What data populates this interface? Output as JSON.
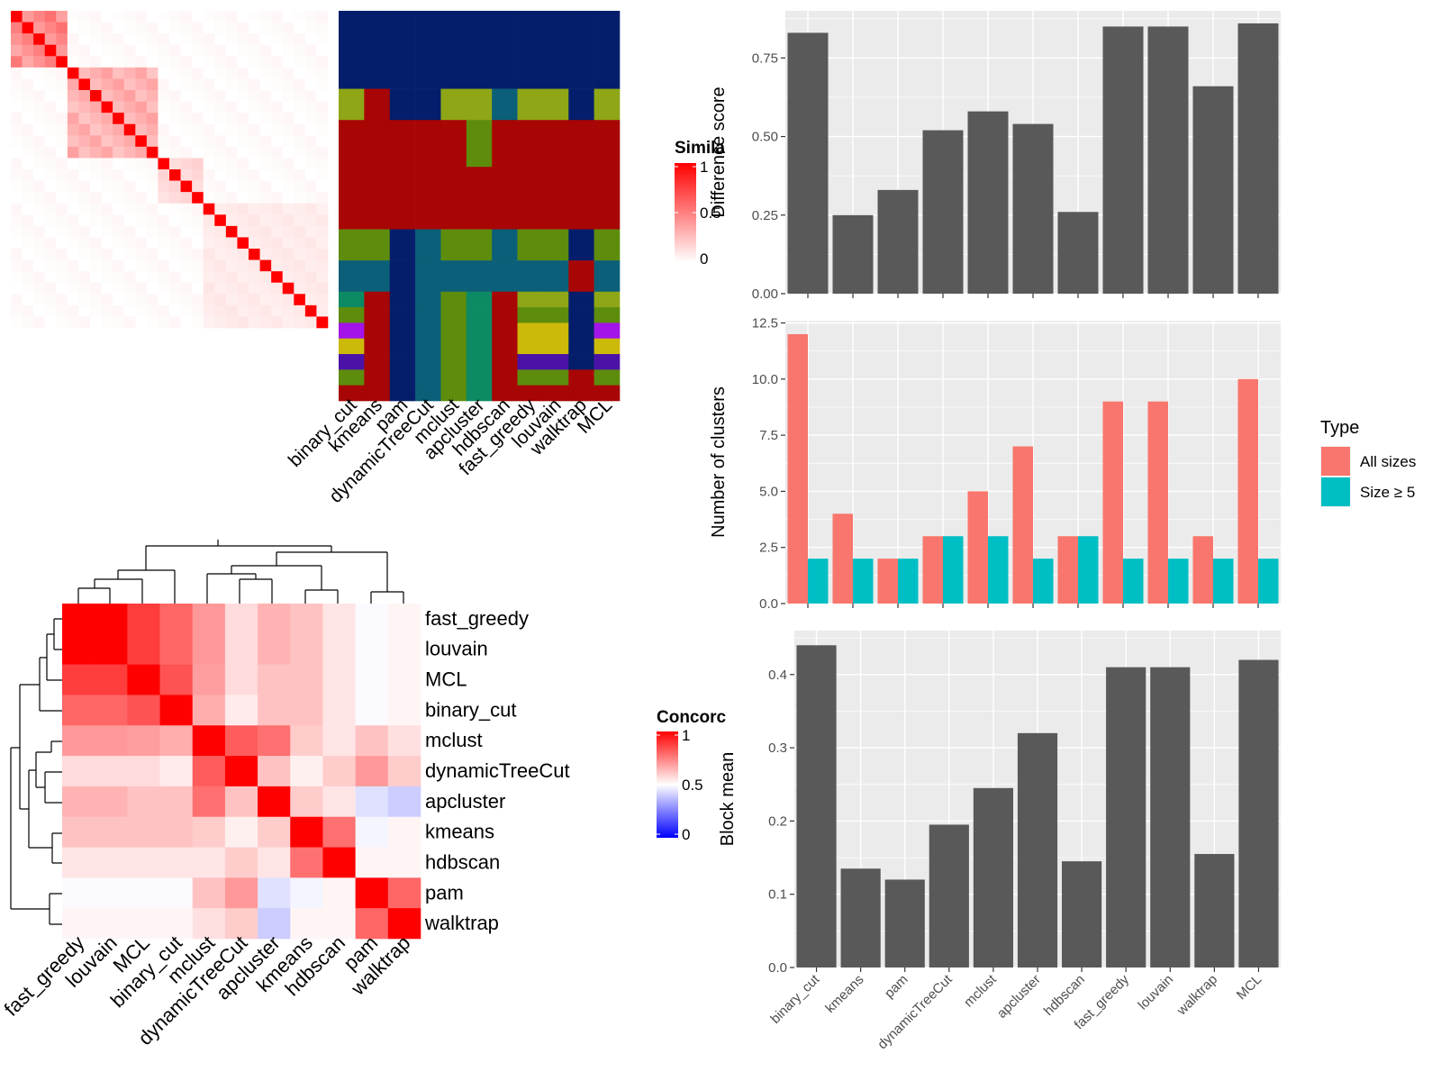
{
  "colors": {
    "panel_bg": "#ebebeb",
    "bar_dark": "#595959",
    "all_sizes": "#f8766d",
    "size_ge5": "#00bfc4",
    "heat_red": "#ff0000",
    "heat_blue": "#0000ff",
    "memb_navy": "#041e6b",
    "memb_red": "#a80505",
    "memb_olive": "#8fa616",
    "memb_green": "#5e8c0d",
    "memb_teal": "#0b5f78",
    "memb_seagreen": "#0c8a63",
    "memb_purple": "#a314e8",
    "memb_gold": "#ccb90a",
    "memb_indigo": "#4b12a8"
  },
  "chart_data": [
    {
      "id": "similarity_heatmap",
      "type": "heatmap",
      "legend_title": "Simila",
      "legend_ticks": [
        "1",
        "0.5",
        "0"
      ],
      "n": 28,
      "diagonal": 1,
      "blocks": [
        {
          "rows": [
            0,
            1,
            2,
            3,
            4
          ],
          "value": 0.45
        },
        {
          "rows": [
            5,
            6,
            7,
            8,
            9,
            10,
            11,
            12
          ],
          "value": 0.3
        },
        {
          "rows": [
            13,
            14,
            15,
            16
          ],
          "value": 0.15
        },
        {
          "rows": [
            17,
            18,
            19,
            20,
            21,
            22,
            23,
            24,
            25,
            26,
            27
          ],
          "value": 0.08
        }
      ]
    },
    {
      "id": "membership_heatmap",
      "type": "heatmap",
      "columns": [
        "binary_cut",
        "kmeans",
        "pam",
        "dynamicTreeCut",
        "mclust",
        "apcluster",
        "hdbscan",
        "fast_greedy",
        "louvain",
        "walktrap",
        "MCL"
      ],
      "row_groups": [
        {
          "rows": 5,
          "cols": [
            "navy",
            "navy",
            "navy",
            "navy",
            "navy",
            "navy",
            "navy",
            "navy",
            "navy",
            "navy",
            "navy"
          ]
        },
        {
          "rows": 2,
          "cols": [
            "olive",
            "red",
            "navy",
            "navy",
            "olive",
            "olive",
            "teal",
            "olive",
            "olive",
            "navy",
            "olive"
          ]
        },
        {
          "rows": 3,
          "cols": [
            "red",
            "red",
            "red",
            "red",
            "red",
            "green",
            "red",
            "red",
            "red",
            "red",
            "red"
          ]
        },
        {
          "rows": 4,
          "cols": [
            "red",
            "red",
            "red",
            "red",
            "red",
            "red",
            "red",
            "red",
            "red",
            "red",
            "red"
          ]
        },
        {
          "rows": 2,
          "cols": [
            "green",
            "green",
            "navy",
            "teal",
            "green",
            "green",
            "teal",
            "green",
            "green",
            "navy",
            "green"
          ]
        },
        {
          "rows": 2,
          "cols": [
            "teal",
            "teal",
            "navy",
            "teal",
            "teal",
            "teal",
            "teal",
            "teal",
            "teal",
            "red",
            "teal"
          ]
        },
        {
          "rows": 1,
          "cols": [
            "seagreen",
            "red",
            "navy",
            "teal",
            "green",
            "seagreen",
            "red",
            "olive",
            "olive",
            "navy",
            "olive"
          ]
        },
        {
          "rows": 1,
          "cols": [
            "green",
            "red",
            "navy",
            "teal",
            "green",
            "seagreen",
            "red",
            "green",
            "green",
            "navy",
            "green"
          ]
        },
        {
          "rows": 1,
          "cols": [
            "purple",
            "red",
            "navy",
            "teal",
            "green",
            "seagreen",
            "red",
            "gold",
            "gold",
            "navy",
            "purple"
          ]
        },
        {
          "rows": 1,
          "cols": [
            "gold",
            "red",
            "navy",
            "teal",
            "green",
            "seagreen",
            "red",
            "gold",
            "gold",
            "navy",
            "gold"
          ]
        },
        {
          "rows": 1,
          "cols": [
            "indigo",
            "red",
            "navy",
            "teal",
            "green",
            "seagreen",
            "red",
            "indigo",
            "indigo",
            "navy",
            "indigo"
          ]
        },
        {
          "rows": 1,
          "cols": [
            "green",
            "red",
            "navy",
            "teal",
            "green",
            "seagreen",
            "red",
            "green",
            "green",
            "red",
            "green"
          ]
        },
        {
          "rows": 1,
          "cols": [
            "red",
            "red",
            "navy",
            "teal",
            "green",
            "seagreen",
            "red",
            "red",
            "red",
            "red",
            "red"
          ]
        }
      ]
    },
    {
      "id": "concordance_heatmap",
      "type": "heatmap",
      "legend_title": "Concorc",
      "legend_ticks": [
        "1",
        "0.5",
        "0"
      ],
      "labels": [
        "fast_greedy",
        "louvain",
        "MCL",
        "binary_cut",
        "mclust",
        "dynamicTreeCut",
        "apcluster",
        "kmeans",
        "hdbscan",
        "pam",
        "walktrap"
      ],
      "matrix": [
        [
          1.0,
          1.0,
          0.88,
          0.8,
          0.7,
          0.57,
          0.65,
          0.62,
          0.55,
          0.49,
          0.52
        ],
        [
          1.0,
          1.0,
          0.88,
          0.8,
          0.7,
          0.57,
          0.65,
          0.62,
          0.55,
          0.49,
          0.52
        ],
        [
          0.88,
          0.88,
          1.0,
          0.84,
          0.69,
          0.57,
          0.62,
          0.62,
          0.55,
          0.49,
          0.52
        ],
        [
          0.8,
          0.8,
          0.84,
          1.0,
          0.66,
          0.54,
          0.62,
          0.62,
          0.55,
          0.49,
          0.52
        ],
        [
          0.7,
          0.7,
          0.69,
          0.66,
          1.0,
          0.82,
          0.78,
          0.6,
          0.55,
          0.62,
          0.56
        ],
        [
          0.57,
          0.57,
          0.57,
          0.54,
          0.82,
          1.0,
          0.62,
          0.53,
          0.6,
          0.7,
          0.6
        ],
        [
          0.65,
          0.65,
          0.62,
          0.62,
          0.78,
          0.62,
          1.0,
          0.6,
          0.55,
          0.44,
          0.4
        ],
        [
          0.62,
          0.62,
          0.62,
          0.62,
          0.6,
          0.53,
          0.6,
          1.0,
          0.78,
          0.48,
          0.52
        ],
        [
          0.55,
          0.55,
          0.55,
          0.55,
          0.55,
          0.6,
          0.55,
          0.78,
          1.0,
          0.52,
          0.52
        ],
        [
          0.49,
          0.49,
          0.49,
          0.49,
          0.62,
          0.7,
          0.44,
          0.48,
          0.52,
          1.0,
          0.8
        ],
        [
          0.52,
          0.52,
          0.52,
          0.52,
          0.56,
          0.6,
          0.4,
          0.52,
          0.52,
          0.8,
          1.0
        ]
      ]
    },
    {
      "id": "difference_score",
      "type": "bar",
      "categories": [
        "binary_cut",
        "kmeans",
        "pam",
        "dynamicTreeCut",
        "mclust",
        "apcluster",
        "hdbscan",
        "fast_greedy",
        "louvain",
        "walktrap",
        "MCL"
      ],
      "values": [
        0.83,
        0.25,
        0.33,
        0.52,
        0.58,
        0.54,
        0.26,
        0.85,
        0.85,
        0.66,
        0.86
      ],
      "ylabel": "Difference score",
      "ylim": [
        0,
        0.9
      ],
      "yticks": [
        0,
        0.25,
        0.5,
        0.75
      ],
      "ytick_labels": [
        "0.00",
        "0.25",
        "0.50",
        "0.75"
      ]
    },
    {
      "id": "number_of_clusters",
      "type": "bar",
      "categories": [
        "binary_cut",
        "kmeans",
        "pam",
        "dynamicTreeCut",
        "mclust",
        "apcluster",
        "hdbscan",
        "fast_greedy",
        "louvain",
        "walktrap",
        "MCL"
      ],
      "series": [
        {
          "name": "All sizes",
          "values": [
            12,
            4,
            2,
            3,
            5,
            7,
            3,
            9,
            9,
            3,
            10
          ]
        },
        {
          "name": "Size ≥ 5",
          "values": [
            2,
            2,
            2,
            3,
            3,
            2,
            3,
            2,
            2,
            2,
            2
          ]
        }
      ],
      "ylabel": "Number of clusters",
      "ylim": [
        0,
        12.6
      ],
      "yticks": [
        0,
        2.5,
        5,
        7.5,
        10,
        12.5
      ],
      "ytick_labels": [
        "0.0",
        "2.5",
        "5.0",
        "7.5",
        "10.0",
        "12.5"
      ],
      "legend_title": "Type",
      "legend_position": "right"
    },
    {
      "id": "block_mean",
      "type": "bar",
      "categories": [
        "binary_cut",
        "kmeans",
        "pam",
        "dynamicTreeCut",
        "mclust",
        "apcluster",
        "hdbscan",
        "fast_greedy",
        "louvain",
        "walktrap",
        "MCL"
      ],
      "values": [
        0.44,
        0.135,
        0.12,
        0.195,
        0.245,
        0.32,
        0.145,
        0.41,
        0.41,
        0.155,
        0.42
      ],
      "ylabel": "Block mean",
      "ylim": [
        0,
        0.46
      ],
      "yticks": [
        0,
        0.1,
        0.2,
        0.3,
        0.4
      ],
      "ytick_labels": [
        "0.0",
        "0.1",
        "0.2",
        "0.3",
        "0.4"
      ]
    }
  ]
}
